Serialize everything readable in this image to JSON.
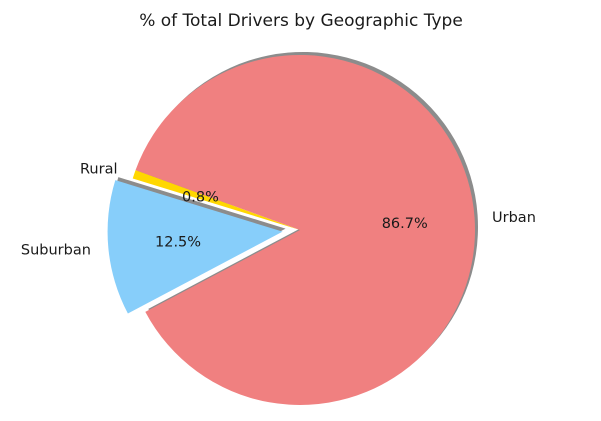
{
  "chart_data": {
    "type": "pie",
    "title": "% of Total Drivers by Geographic Type",
    "slices": [
      {
        "label": "Rural",
        "value": 0.8,
        "pct_text": "0.8%",
        "color": "#FFD700",
        "explode": 0.0
      },
      {
        "label": "Suburban",
        "value": 12.5,
        "pct_text": "12.5%",
        "color": "#87CEFA",
        "explode": 0.1
      },
      {
        "label": "Urban",
        "value": 86.7,
        "pct_text": "86.7%",
        "color": "#F08080",
        "explode": 0.0
      }
    ],
    "start_angle_deg": 160,
    "shadow": true
  }
}
